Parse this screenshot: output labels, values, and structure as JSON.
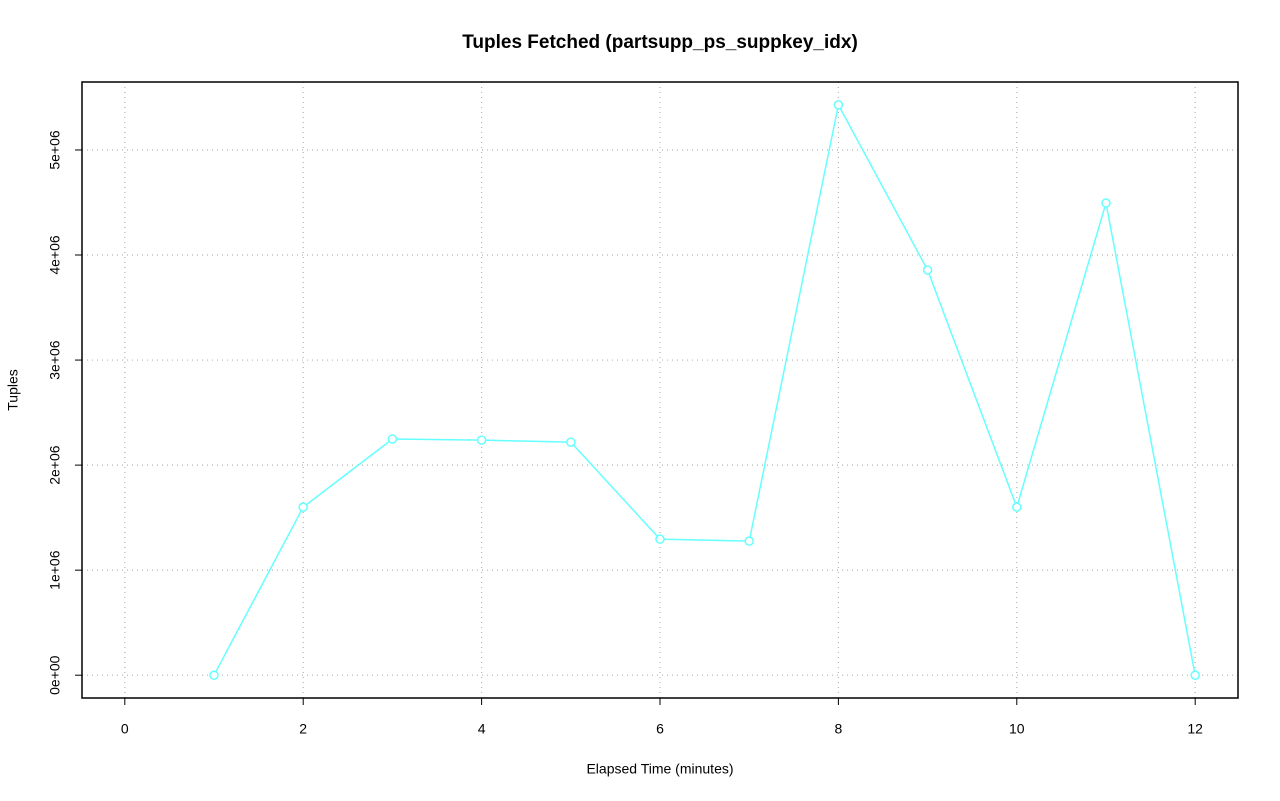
{
  "chart_data": {
    "type": "line",
    "title": "Tuples Fetched (partsupp_ps_suppkey_idx)",
    "x_label": "Elapsed Time (minutes)",
    "y_label": "Tuples",
    "x": [
      1,
      2,
      3,
      4,
      5,
      6,
      7,
      8,
      9,
      10,
      11,
      12
    ],
    "series": [
      {
        "name": "partsupp_ps_suppkey_idx",
        "color": "#66ffff",
        "values": [
          0,
          1600000,
          2248000,
          2238000,
          2219000,
          1295000,
          1276000,
          5429000,
          3857000,
          1600000,
          4495000,
          0
        ]
      }
    ],
    "xlim": [
      -0.48,
      12.48
    ],
    "ylim": [
      -217000,
      5647000
    ],
    "xticks": [
      0,
      2,
      4,
      6,
      8,
      10,
      12
    ],
    "yticks": [
      {
        "value": 0,
        "label": "0e+00"
      },
      {
        "value": 1000000,
        "label": "1e+06"
      },
      {
        "value": 2000000,
        "label": "2e+06"
      },
      {
        "value": 3000000,
        "label": "3e+06"
      },
      {
        "value": 4000000,
        "label": "4e+06"
      },
      {
        "value": 5000000,
        "label": "5e+06"
      }
    ],
    "grid": true
  }
}
